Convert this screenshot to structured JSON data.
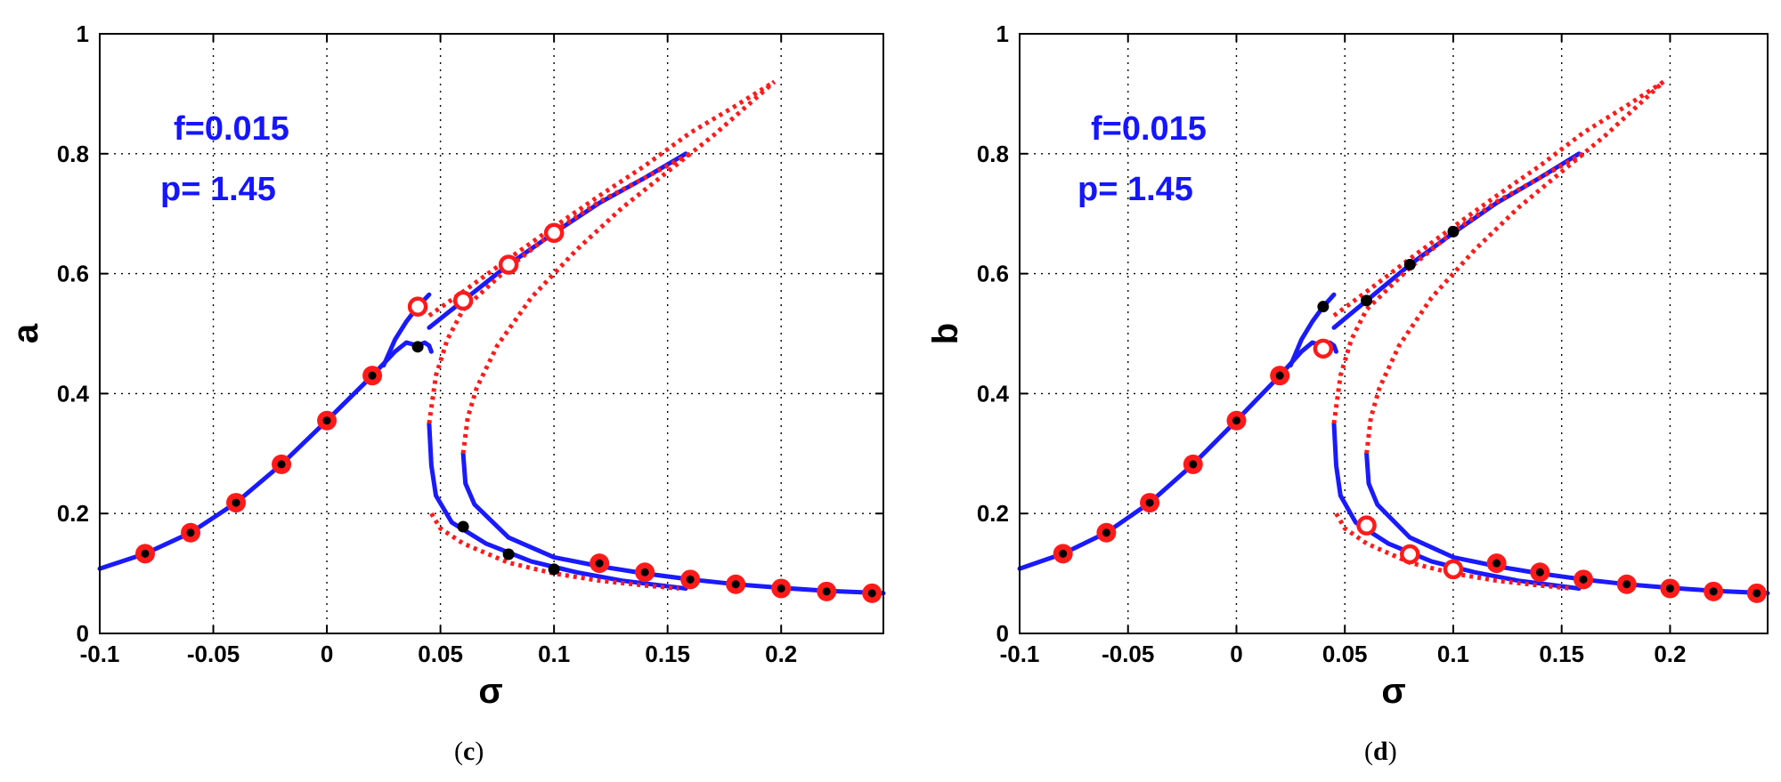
{
  "chart_data": [
    {
      "type": "line",
      "id": "panel-c",
      "caption_letter": "c",
      "xlabel": "σ",
      "ylabel": "a",
      "xlim": [
        -0.1,
        0.245
      ],
      "ylim": [
        0,
        1
      ],
      "xticks": [
        -0.1,
        -0.05,
        0,
        0.05,
        0.1,
        0.15,
        0.2
      ],
      "xtick_labels": [
        "-0.1",
        "-0.05",
        "0",
        "0.05",
        "0.1",
        "0.15",
        "0.2"
      ],
      "yticks": [
        0,
        0.2,
        0.4,
        0.6,
        0.8,
        1
      ],
      "ytick_labels": [
        "0",
        "0.2",
        "0.4",
        "0.6",
        "0.8",
        "1"
      ],
      "grid": true,
      "annotations": [
        "f=0.015",
        "p= 1.45"
      ],
      "series": [
        {
          "name": "stable lower-left branch",
          "style": "solid",
          "color": "#1a1aff",
          "x": [
            -0.1,
            -0.08,
            -0.06,
            -0.04,
            -0.02,
            0,
            0.02,
            0.03,
            0.035
          ],
          "y": [
            0.108,
            0.133,
            0.168,
            0.218,
            0.282,
            0.355,
            0.43,
            0.47,
            0.485
          ]
        },
        {
          "name": "stable loop upper",
          "style": "solid",
          "color": "#1a1aff",
          "x": [
            0.025,
            0.03,
            0.035,
            0.04,
            0.045
          ],
          "y": [
            0.447,
            0.49,
            0.52,
            0.545,
            0.565
          ]
        },
        {
          "name": "stable loop lower",
          "style": "solid",
          "color": "#1a1aff",
          "x": [
            0.035,
            0.04,
            0.043,
            0.045,
            0.046
          ],
          "y": [
            0.485,
            0.48,
            0.485,
            0.48,
            0.47
          ]
        },
        {
          "name": "stable upper branch",
          "style": "solid",
          "color": "#1a1aff",
          "x": [
            0.045,
            0.06,
            0.08,
            0.1,
            0.12,
            0.14,
            0.158
          ],
          "y": [
            0.51,
            0.555,
            0.615,
            0.668,
            0.718,
            0.76,
            0.8
          ]
        },
        {
          "name": "stable lower branch 1",
          "style": "solid",
          "color": "#1a1aff",
          "x": [
            0.045,
            0.046,
            0.048,
            0.055,
            0.07,
            0.09,
            0.11,
            0.13,
            0.158
          ],
          "y": [
            0.35,
            0.28,
            0.23,
            0.185,
            0.15,
            0.12,
            0.102,
            0.088,
            0.075
          ]
        },
        {
          "name": "stable lower branch 2",
          "style": "solid",
          "color": "#1a1aff",
          "x": [
            0.06,
            0.061,
            0.065,
            0.08,
            0.1,
            0.12,
            0.14,
            0.16,
            0.18,
            0.2,
            0.22,
            0.245
          ],
          "y": [
            0.3,
            0.25,
            0.215,
            0.16,
            0.127,
            0.112,
            0.1,
            0.09,
            0.082,
            0.076,
            0.071,
            0.067
          ]
        },
        {
          "name": "unstable outer upper",
          "style": "dotted",
          "color": "#ff1a1a",
          "x": [
            0.045,
            0.06,
            0.08,
            0.1,
            0.12,
            0.14,
            0.16,
            0.18,
            0.197
          ],
          "y": [
            0.53,
            0.57,
            0.625,
            0.678,
            0.73,
            0.78,
            0.835,
            0.88,
            0.92
          ]
        },
        {
          "name": "unstable inner 1",
          "style": "dotted",
          "color": "#ff1a1a",
          "x": [
            0.045,
            0.048,
            0.053,
            0.06,
            0.08,
            0.1,
            0.12,
            0.14,
            0.16
          ],
          "y": [
            0.35,
            0.43,
            0.49,
            0.54,
            0.61,
            0.67,
            0.72,
            0.76,
            0.8
          ]
        },
        {
          "name": "unstable inner 2",
          "style": "dotted",
          "color": "#ff1a1a",
          "x": [
            0.06,
            0.062,
            0.066,
            0.075,
            0.09,
            0.11,
            0.13,
            0.15,
            0.17,
            0.185,
            0.197
          ],
          "y": [
            0.3,
            0.36,
            0.41,
            0.48,
            0.56,
            0.64,
            0.71,
            0.77,
            0.83,
            0.88,
            0.92
          ]
        },
        {
          "name": "unstable lower return",
          "style": "dotted",
          "color": "#ff1a1a",
          "x": [
            0.046,
            0.05,
            0.06,
            0.08,
            0.1,
            0.12,
            0.14,
            0.155
          ],
          "y": [
            0.2,
            0.175,
            0.15,
            0.118,
            0.1,
            0.088,
            0.08,
            0.075
          ]
        }
      ],
      "markers": [
        {
          "x": -0.08,
          "y": 0.133,
          "kind": "filled"
        },
        {
          "x": -0.06,
          "y": 0.168,
          "kind": "filled"
        },
        {
          "x": -0.04,
          "y": 0.218,
          "kind": "filled"
        },
        {
          "x": -0.02,
          "y": 0.282,
          "kind": "filled"
        },
        {
          "x": 0,
          "y": 0.355,
          "kind": "filled"
        },
        {
          "x": 0.02,
          "y": 0.43,
          "kind": "filled"
        },
        {
          "x": 0.04,
          "y": 0.545,
          "kind": "hollow"
        },
        {
          "x": 0.04,
          "y": 0.478,
          "kind": "dot"
        },
        {
          "x": 0.06,
          "y": 0.555,
          "kind": "hollow"
        },
        {
          "x": 0.08,
          "y": 0.615,
          "kind": "hollow"
        },
        {
          "x": 0.1,
          "y": 0.668,
          "kind": "hollow"
        },
        {
          "x": 0.06,
          "y": 0.178,
          "kind": "dot"
        },
        {
          "x": 0.08,
          "y": 0.132,
          "kind": "dot"
        },
        {
          "x": 0.1,
          "y": 0.107,
          "kind": "dot"
        },
        {
          "x": 0.12,
          "y": 0.117,
          "kind": "filled"
        },
        {
          "x": 0.14,
          "y": 0.102,
          "kind": "filled"
        },
        {
          "x": 0.16,
          "y": 0.09,
          "kind": "filled"
        },
        {
          "x": 0.18,
          "y": 0.082,
          "kind": "filled"
        },
        {
          "x": 0.2,
          "y": 0.075,
          "kind": "filled"
        },
        {
          "x": 0.22,
          "y": 0.07,
          "kind": "filled"
        },
        {
          "x": 0.24,
          "y": 0.067,
          "kind": "filled"
        }
      ]
    },
    {
      "type": "line",
      "id": "panel-d",
      "caption_letter": "d",
      "xlabel": "σ",
      "ylabel": "b",
      "xlim": [
        -0.1,
        0.245
      ],
      "ylim": [
        0,
        1
      ],
      "xticks": [
        -0.1,
        -0.05,
        0,
        0.05,
        0.1,
        0.15,
        0.2
      ],
      "xtick_labels": [
        "-0.1",
        "-0.05",
        "0",
        "0.05",
        "0.1",
        "0.15",
        "0.2"
      ],
      "yticks": [
        0,
        0.2,
        0.4,
        0.6,
        0.8,
        1
      ],
      "ytick_labels": [
        "0",
        "0.2",
        "0.4",
        "0.6",
        "0.8",
        "1"
      ],
      "grid": true,
      "annotations": [
        "f=0.015",
        "p= 1.45"
      ],
      "series": [
        {
          "name": "stable lower-left branch",
          "style": "solid",
          "color": "#1a1aff",
          "x": [
            -0.1,
            -0.08,
            -0.06,
            -0.04,
            -0.02,
            0,
            0.02,
            0.03,
            0.035
          ],
          "y": [
            0.108,
            0.133,
            0.168,
            0.218,
            0.282,
            0.355,
            0.43,
            0.47,
            0.485
          ]
        },
        {
          "name": "stable loop upper",
          "style": "solid",
          "color": "#1a1aff",
          "x": [
            0.025,
            0.03,
            0.035,
            0.04,
            0.045
          ],
          "y": [
            0.447,
            0.49,
            0.52,
            0.545,
            0.565
          ]
        },
        {
          "name": "stable loop lower",
          "style": "solid",
          "color": "#1a1aff",
          "x": [
            0.035,
            0.04,
            0.043,
            0.045,
            0.046
          ],
          "y": [
            0.485,
            0.48,
            0.485,
            0.48,
            0.47
          ]
        },
        {
          "name": "stable upper branch",
          "style": "solid",
          "color": "#1a1aff",
          "x": [
            0.045,
            0.06,
            0.08,
            0.1,
            0.12,
            0.14,
            0.158
          ],
          "y": [
            0.51,
            0.555,
            0.615,
            0.668,
            0.718,
            0.76,
            0.8
          ]
        },
        {
          "name": "stable lower branch 1",
          "style": "solid",
          "color": "#1a1aff",
          "x": [
            0.045,
            0.046,
            0.048,
            0.055,
            0.07,
            0.09,
            0.11,
            0.13,
            0.158
          ],
          "y": [
            0.35,
            0.28,
            0.23,
            0.185,
            0.15,
            0.12,
            0.102,
            0.088,
            0.075
          ]
        },
        {
          "name": "stable lower branch 2",
          "style": "solid",
          "color": "#1a1aff",
          "x": [
            0.06,
            0.061,
            0.065,
            0.08,
            0.1,
            0.12,
            0.14,
            0.16,
            0.18,
            0.2,
            0.22,
            0.245
          ],
          "y": [
            0.3,
            0.25,
            0.215,
            0.16,
            0.127,
            0.112,
            0.1,
            0.09,
            0.082,
            0.076,
            0.071,
            0.067
          ]
        },
        {
          "name": "unstable outer upper",
          "style": "dotted",
          "color": "#ff1a1a",
          "x": [
            0.045,
            0.06,
            0.08,
            0.1,
            0.12,
            0.14,
            0.16,
            0.18,
            0.197
          ],
          "y": [
            0.53,
            0.57,
            0.625,
            0.678,
            0.73,
            0.78,
            0.835,
            0.88,
            0.92
          ]
        },
        {
          "name": "unstable inner 1",
          "style": "dotted",
          "color": "#ff1a1a",
          "x": [
            0.045,
            0.048,
            0.053,
            0.06,
            0.08,
            0.1,
            0.12,
            0.14,
            0.16
          ],
          "y": [
            0.35,
            0.43,
            0.49,
            0.54,
            0.61,
            0.67,
            0.72,
            0.76,
            0.8
          ]
        },
        {
          "name": "unstable inner 2",
          "style": "dotted",
          "color": "#ff1a1a",
          "x": [
            0.06,
            0.062,
            0.066,
            0.075,
            0.09,
            0.11,
            0.13,
            0.15,
            0.17,
            0.185,
            0.197
          ],
          "y": [
            0.3,
            0.36,
            0.41,
            0.48,
            0.56,
            0.64,
            0.71,
            0.77,
            0.83,
            0.88,
            0.92
          ]
        },
        {
          "name": "unstable lower return",
          "style": "dotted",
          "color": "#ff1a1a",
          "x": [
            0.046,
            0.05,
            0.06,
            0.08,
            0.1,
            0.12,
            0.14,
            0.155
          ],
          "y": [
            0.2,
            0.175,
            0.15,
            0.118,
            0.1,
            0.088,
            0.08,
            0.075
          ]
        }
      ],
      "markers": [
        {
          "x": -0.08,
          "y": 0.133,
          "kind": "filled"
        },
        {
          "x": -0.06,
          "y": 0.168,
          "kind": "filled"
        },
        {
          "x": -0.04,
          "y": 0.218,
          "kind": "filled"
        },
        {
          "x": -0.02,
          "y": 0.282,
          "kind": "filled"
        },
        {
          "x": 0,
          "y": 0.355,
          "kind": "filled"
        },
        {
          "x": 0.02,
          "y": 0.43,
          "kind": "filled"
        },
        {
          "x": 0.04,
          "y": 0.545,
          "kind": "dot"
        },
        {
          "x": 0.04,
          "y": 0.475,
          "kind": "hollow"
        },
        {
          "x": 0.06,
          "y": 0.555,
          "kind": "dot"
        },
        {
          "x": 0.08,
          "y": 0.615,
          "kind": "dot"
        },
        {
          "x": 0.1,
          "y": 0.67,
          "kind": "dot"
        },
        {
          "x": 0.06,
          "y": 0.18,
          "kind": "hollow"
        },
        {
          "x": 0.08,
          "y": 0.132,
          "kind": "hollow"
        },
        {
          "x": 0.1,
          "y": 0.107,
          "kind": "hollow"
        },
        {
          "x": 0.12,
          "y": 0.117,
          "kind": "filled"
        },
        {
          "x": 0.14,
          "y": 0.102,
          "kind": "filled"
        },
        {
          "x": 0.16,
          "y": 0.09,
          "kind": "filled"
        },
        {
          "x": 0.18,
          "y": 0.082,
          "kind": "filled"
        },
        {
          "x": 0.2,
          "y": 0.075,
          "kind": "filled"
        },
        {
          "x": 0.22,
          "y": 0.07,
          "kind": "filled"
        },
        {
          "x": 0.24,
          "y": 0.067,
          "kind": "filled"
        }
      ]
    }
  ]
}
